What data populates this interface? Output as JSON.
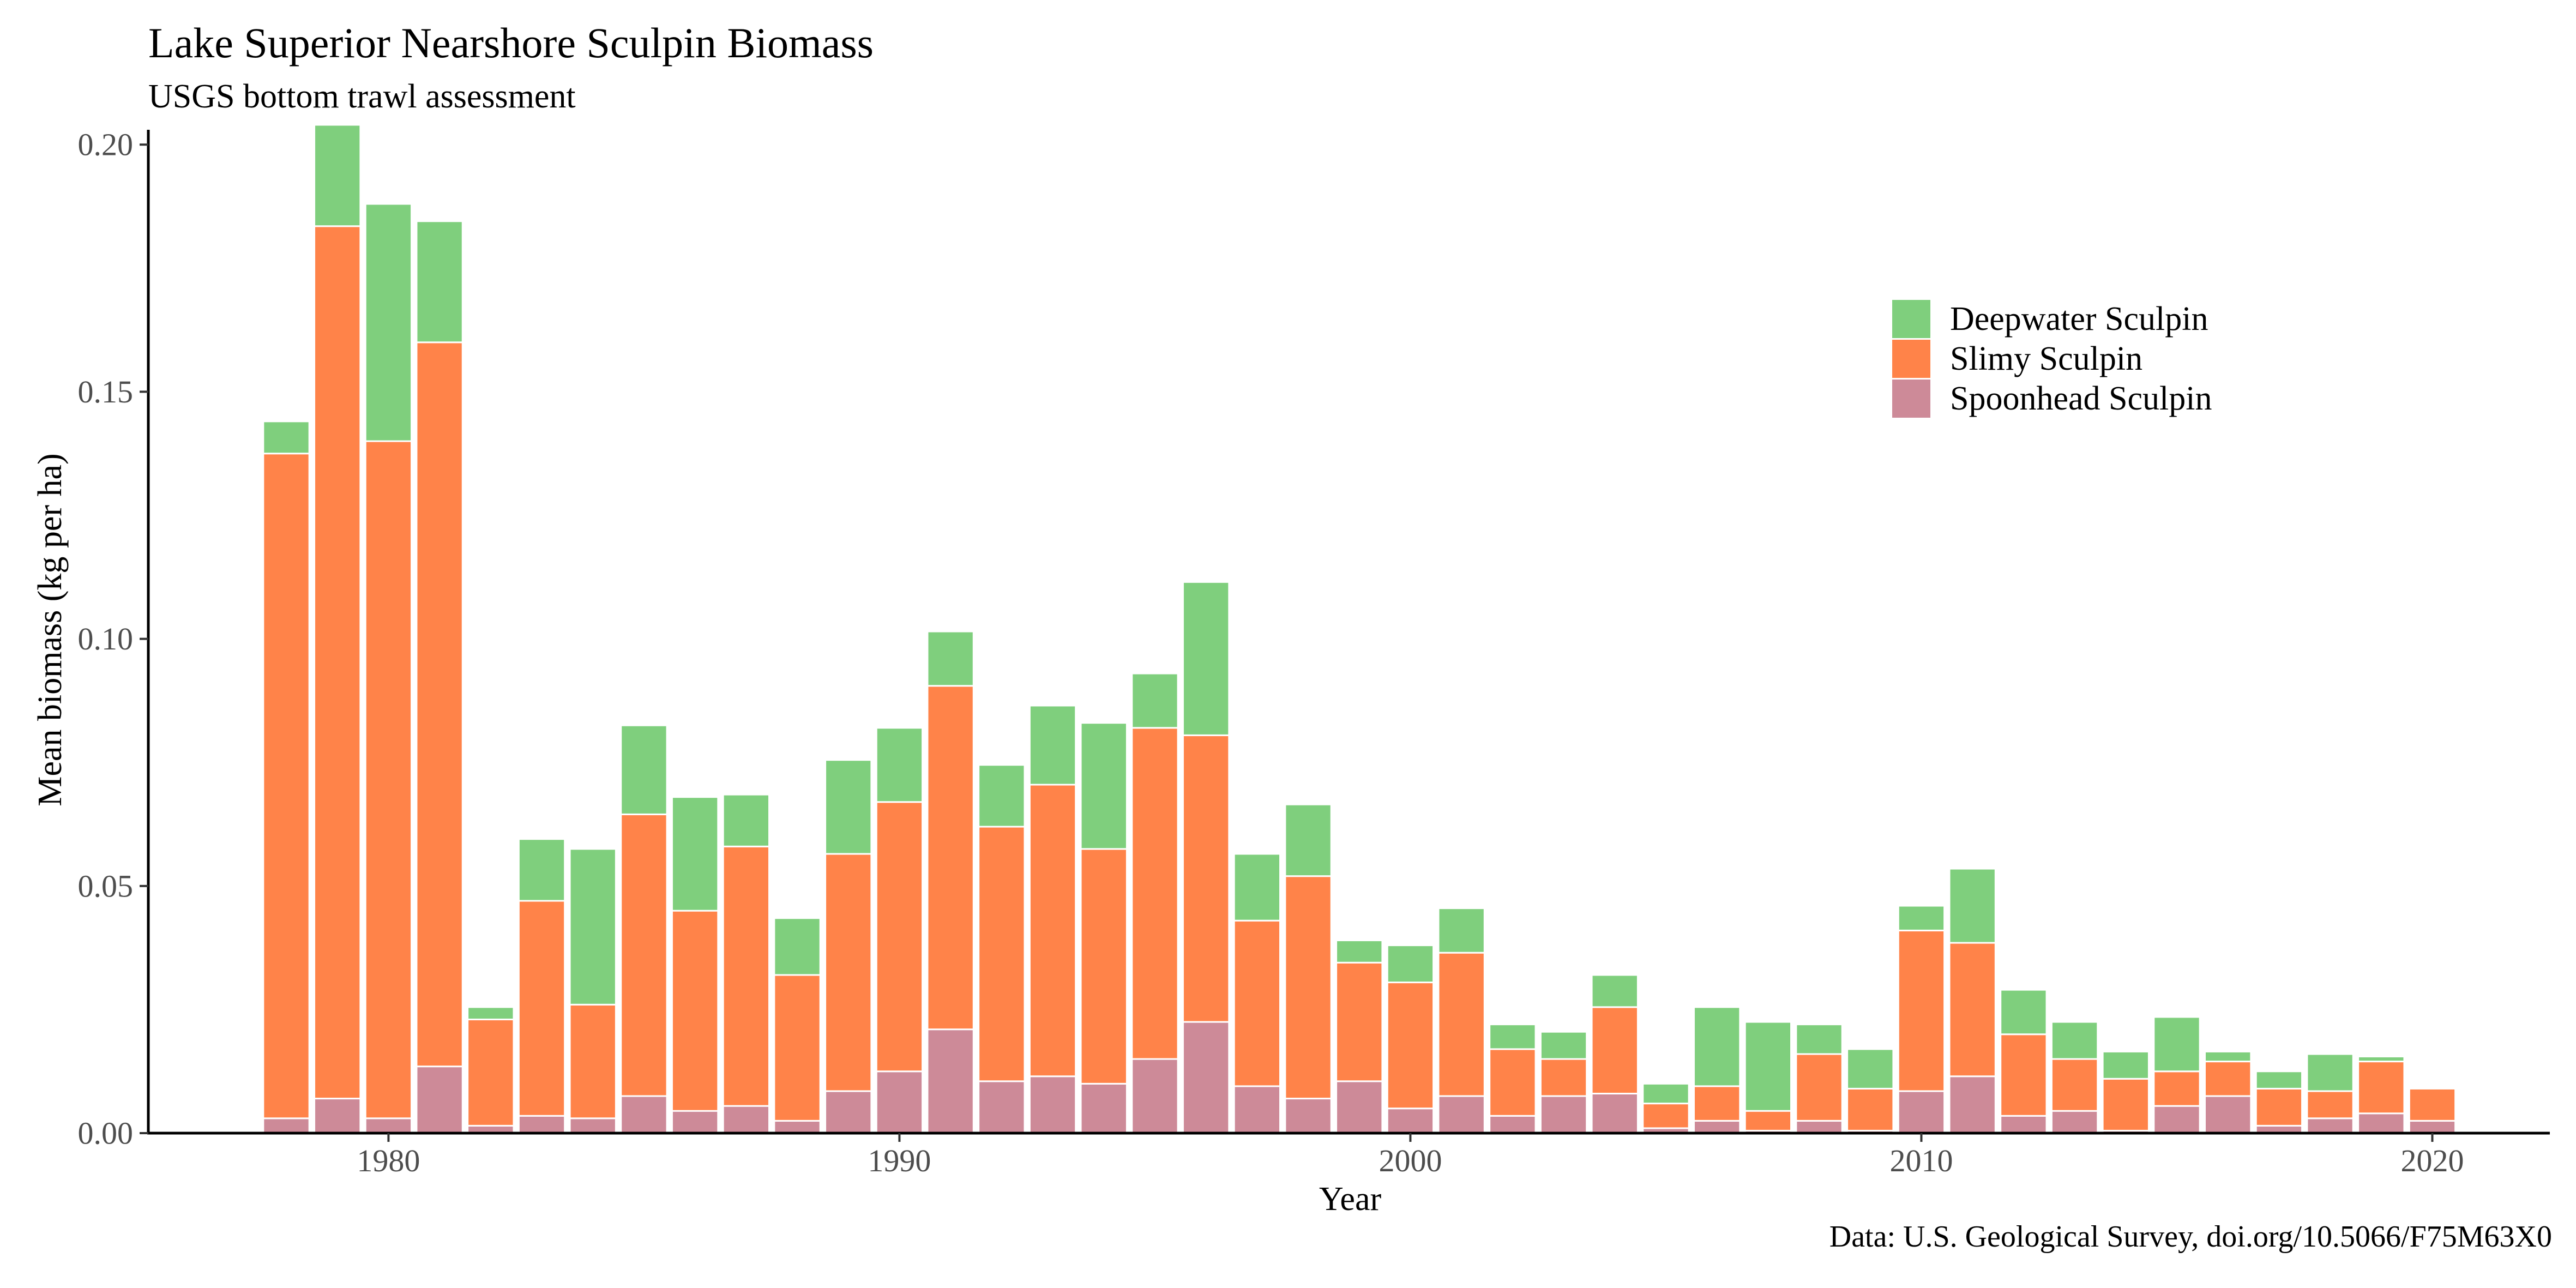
{
  "title": "Lake Superior Nearshore Sculpin Biomass",
  "subtitle": "USGS bottom trawl assessment",
  "caption": "Data: U.S. Geological Survey, doi.org/10.5066/F75M63X0",
  "chart_data": {
    "type": "bar",
    "stacked": true,
    "xlabel": "Year",
    "ylabel": "Mean biomass (kg per ha)",
    "xlim": [
      1975.3,
      2022.3
    ],
    "ylim": [
      0,
      0.203
    ],
    "x_ticks": [
      1980,
      1990,
      2000,
      2010,
      2020
    ],
    "y_ticks": [
      0,
      0.05,
      0.1,
      0.15,
      0.2
    ],
    "y_tick_labels": [
      "0.00",
      "0.05",
      "0.10",
      "0.15",
      "0.20"
    ],
    "legend_position": "right",
    "x": [
      1978,
      1979,
      1980,
      1981,
      1982,
      1983,
      1984,
      1985,
      1986,
      1987,
      1988,
      1989,
      1990,
      1991,
      1992,
      1993,
      1994,
      1995,
      1996,
      1997,
      1998,
      1999,
      2000,
      2001,
      2002,
      2003,
      2004,
      2005,
      2006,
      2007,
      2008,
      2009,
      2010,
      2011,
      2012,
      2013,
      2014,
      2015,
      2016,
      2017,
      2018,
      2019,
      2020
    ],
    "series": [
      {
        "name": "Spoonhead Sculpin",
        "color": "#cd8a98",
        "values": [
          0.003,
          0.007,
          0.003,
          0.0135,
          0.0015,
          0.0035,
          0.003,
          0.0075,
          0.0045,
          0.0055,
          0.0025,
          0.0085,
          0.0125,
          0.021,
          0.0105,
          0.0115,
          0.01,
          0.015,
          0.0225,
          0.0095,
          0.007,
          0.0105,
          0.005,
          0.0075,
          0.0035,
          0.0075,
          0.008,
          0.001,
          0.0025,
          0.0005,
          0.0025,
          0.0005,
          0.0085,
          0.0115,
          0.0035,
          0.0045,
          0.0005,
          0.0055,
          0.0075,
          0.0015,
          0.003,
          0.004,
          0.0025
        ]
      },
      {
        "name": "Slimy Sculpin",
        "color": "#ff8349",
        "values": [
          0.1345,
          0.1765,
          0.137,
          0.1465,
          0.0215,
          0.0435,
          0.023,
          0.057,
          0.0405,
          0.0525,
          0.0295,
          0.048,
          0.0545,
          0.0695,
          0.0515,
          0.059,
          0.0475,
          0.067,
          0.058,
          0.0335,
          0.045,
          0.024,
          0.0255,
          0.029,
          0.0135,
          0.0075,
          0.0175,
          0.005,
          0.007,
          0.004,
          0.0135,
          0.0085,
          0.0325,
          0.027,
          0.0165,
          0.0105,
          0.0105,
          0.007,
          0.007,
          0.0075,
          0.0055,
          0.0105,
          0.0065
        ]
      },
      {
        "name": "Deepwater Sculpin",
        "color": "#7fcf7d",
        "values": [
          0.0065,
          0.0205,
          0.048,
          0.0245,
          0.0025,
          0.0125,
          0.0315,
          0.018,
          0.023,
          0.0105,
          0.0115,
          0.019,
          0.015,
          0.011,
          0.0125,
          0.016,
          0.0255,
          0.011,
          0.031,
          0.0135,
          0.0145,
          0.0045,
          0.0075,
          0.009,
          0.005,
          0.0055,
          0.0065,
          0.004,
          0.016,
          0.018,
          0.006,
          0.008,
          0.005,
          0.015,
          0.009,
          0.0075,
          0.0055,
          0.011,
          0.002,
          0.0035,
          0.0075,
          0.001,
          0.0
        ]
      }
    ]
  }
}
